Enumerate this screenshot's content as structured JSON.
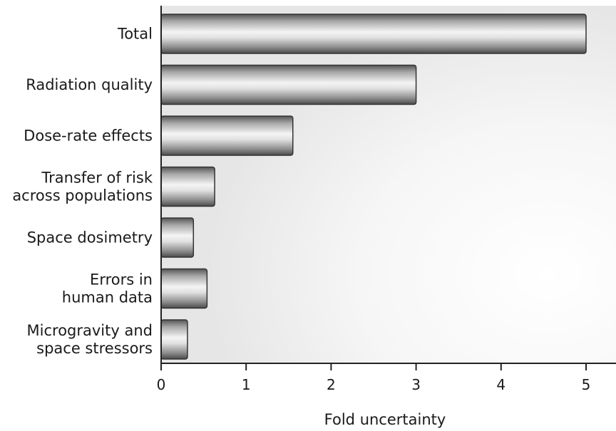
{
  "chart_data": {
    "type": "bar",
    "orientation": "horizontal",
    "title": "",
    "xlabel": "Fold uncertainty",
    "ylabel": "",
    "xlim": [
      0,
      5.4
    ],
    "xticks": [
      "0",
      "1",
      "2",
      "3",
      "4",
      "5"
    ],
    "categories": [
      [
        "Total"
      ],
      [
        "Radiation quality"
      ],
      [
        "Dose-rate effects"
      ],
      [
        "Transfer of risk",
        "across populations"
      ],
      [
        "Space dosimetry"
      ],
      [
        "Errors in",
        "human data"
      ],
      [
        "Microgravity and",
        "space stressors"
      ]
    ],
    "values": [
      5.0,
      3.0,
      1.55,
      0.63,
      0.38,
      0.54,
      0.31
    ],
    "grid": false,
    "legend": "none",
    "colors": {
      "bar_light": "#f4f4f4",
      "bar_dark": "#6e6e6e",
      "bar_stroke": "#333333",
      "axis": "#222222",
      "background_glow": "#e4e4e4"
    }
  }
}
